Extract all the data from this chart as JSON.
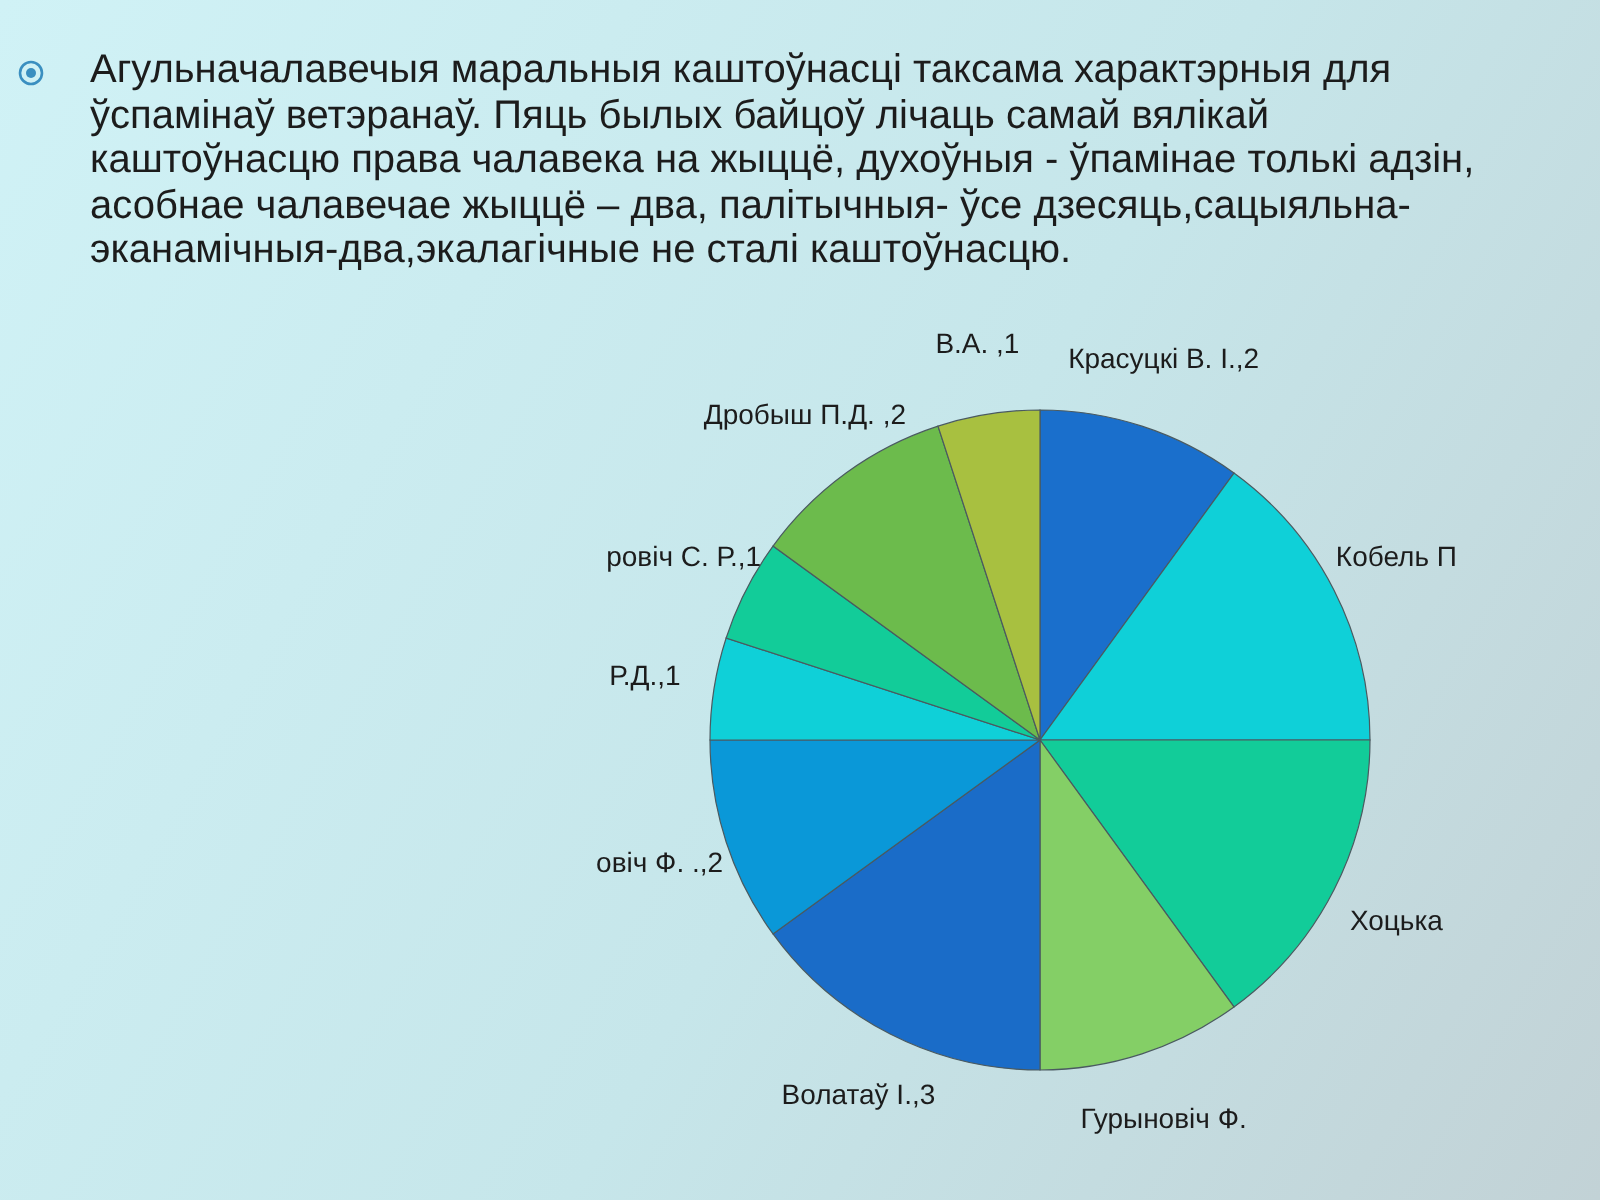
{
  "chart_data": {
    "type": "pie",
    "title": "Агульначалавечыя маральныя каштоўнасці таксама характэрныя для ўспамінаў ветэранаў. Пяць былых байцоў лічаць самай вялікай каштоўнасцю права чалавека на жыццё, духоўныя - ўпамінае толькі адзін, асобнае чалавечае жыццё – два, палітычныя- ўсе дзесяць,сацыяльна-эканамічныя-два,экалагічные не сталі каштоўнасцю.",
    "categories": [
      "Красуцкі В. І.",
      "Кобель П",
      "Хоцька",
      "Гурыновіч Ф.",
      "Волатаў І.",
      "овіч Ф. .",
      "Р.Д.",
      "ровіч С. Р.",
      "Дробыш П.Д. ",
      "В.А. "
    ],
    "values": [
      2,
      3,
      3,
      2,
      3,
      2,
      1,
      1,
      2,
      1
    ],
    "value_labels": [
      ",2",
      null,
      null,
      null,
      ",3",
      ",2",
      ",1",
      ",1",
      ",2",
      ",1"
    ],
    "colors": [
      "#1a6fcc",
      "#0fd0d8",
      "#12cc99",
      "#84cf66",
      "#1a6cc8",
      "#0a98d8",
      "#0fd0d8",
      "#12cc99",
      "#6cbb4c",
      "#a8c040"
    ]
  }
}
